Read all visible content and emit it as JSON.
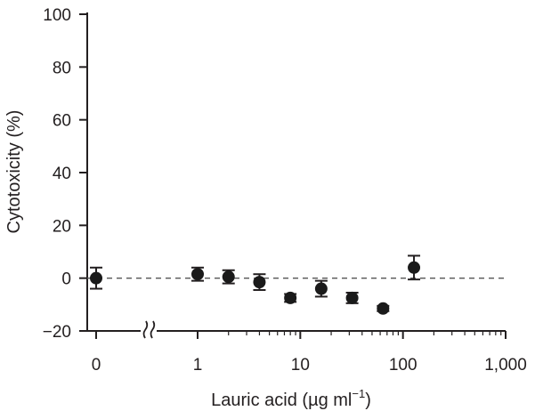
{
  "chart_data": {
    "type": "scatter",
    "xlabel_parts": [
      "Lauric acid (",
      "µg ml",
      "−1",
      ")"
    ],
    "ylabel": "Cytotoxicity (%)",
    "x_scale": "log with axis break; zero point plotted left of break",
    "x_ticks": [
      {
        "value": 0,
        "label": "0"
      },
      {
        "value": 1,
        "label": "1"
      },
      {
        "value": 10,
        "label": "10"
      },
      {
        "value": 100,
        "label": "100"
      },
      {
        "value": 1000,
        "label": "1,000"
      }
    ],
    "y_ticks": [
      {
        "value": 100,
        "label": "100"
      },
      {
        "value": 80,
        "label": "80"
      },
      {
        "value": 60,
        "label": "60"
      },
      {
        "value": 40,
        "label": "40"
      },
      {
        "value": 20,
        "label": "20"
      },
      {
        "value": 0,
        "label": "0"
      },
      {
        "value": -20,
        "label": "−20"
      }
    ],
    "ylim": [
      -20,
      100
    ],
    "xlim": [
      0,
      1000
    ],
    "reference_line": {
      "y": 0,
      "style": "dashed"
    },
    "axis_break": true,
    "grid": false,
    "points": [
      {
        "x": 0,
        "y": 0,
        "err": 4
      },
      {
        "x": 1,
        "y": 1.5,
        "err": 2.5
      },
      {
        "x": 2,
        "y": 0.5,
        "err": 2.5
      },
      {
        "x": 4,
        "y": -1.5,
        "err": 3
      },
      {
        "x": 8,
        "y": -7.5,
        "err": 1.5
      },
      {
        "x": 16,
        "y": -4,
        "err": 3
      },
      {
        "x": 32,
        "y": -7.5,
        "err": 2
      },
      {
        "x": 64,
        "y": -11.5,
        "err": 1
      },
      {
        "x": 128,
        "y": 4,
        "err": 4.5
      }
    ],
    "colors": {
      "ink": "#231f20",
      "point": "#1a1a1a",
      "ref_line": "#555555"
    }
  }
}
